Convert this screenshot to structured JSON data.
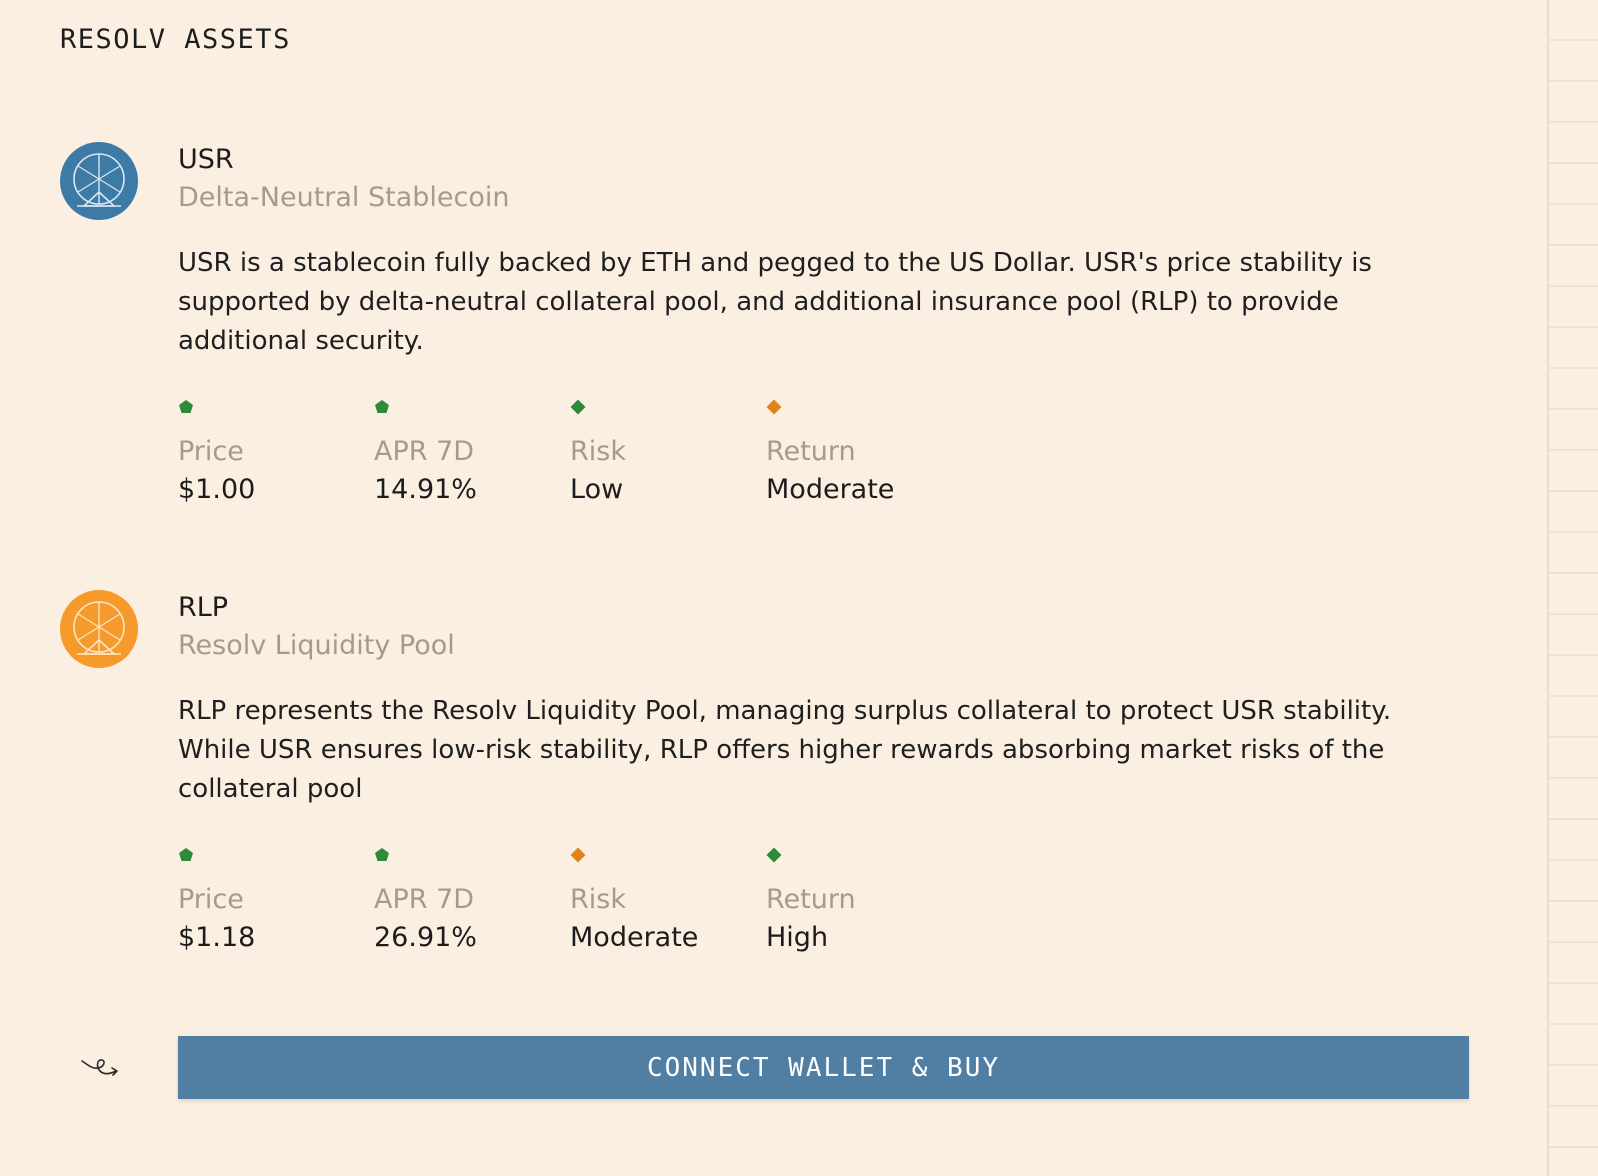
{
  "header": {
    "title": "RESOLV ASSETS"
  },
  "colors": {
    "background": "#fbefe2",
    "usr_logo": "#3e7aa6",
    "rlp_logo": "#f59a2b",
    "positive": "#2e8b3a",
    "warning": "#e2821c",
    "button": "#517ea3"
  },
  "assets": [
    {
      "symbol": "USR",
      "subtitle": "Delta-Neutral Stablecoin",
      "description": "USR is a stablecoin fully backed by ETH and pegged to the US Dollar. USR's price stability is supported by delta-neutral collateral pool, and additional insurance pool (RLP) to provide additional security.",
      "logo_icon": "usr-logo-icon",
      "stats": [
        {
          "label": "Price",
          "value": "$1.00",
          "marker": "green-pentagon-icon"
        },
        {
          "label": "APR 7D",
          "value": "14.91%",
          "marker": "green-pentagon-icon"
        },
        {
          "label": "Risk",
          "value": "Low",
          "marker": "green-diamond-icon"
        },
        {
          "label": "Return",
          "value": "Moderate",
          "marker": "orange-diamond-icon"
        }
      ]
    },
    {
      "symbol": "RLP",
      "subtitle": "Resolv Liquidity Pool",
      "description": "RLP represents the Resolv Liquidity Pool, managing surplus collateral to protect USR stability. While USR ensures low-risk stability, RLP offers higher rewards absorbing market risks of the collateral pool",
      "logo_icon": "rlp-logo-icon",
      "stats": [
        {
          "label": "Price",
          "value": "$1.18",
          "marker": "green-pentagon-icon"
        },
        {
          "label": "APR 7D",
          "value": "26.91%",
          "marker": "green-pentagon-icon"
        },
        {
          "label": "Risk",
          "value": "Moderate",
          "marker": "orange-diamond-icon"
        },
        {
          "label": "Return",
          "value": "High",
          "marker": "green-diamond-icon"
        }
      ]
    }
  ],
  "footer": {
    "icon": "signature-arrow-icon",
    "button_label": "CONNECT WALLET & BUY"
  }
}
